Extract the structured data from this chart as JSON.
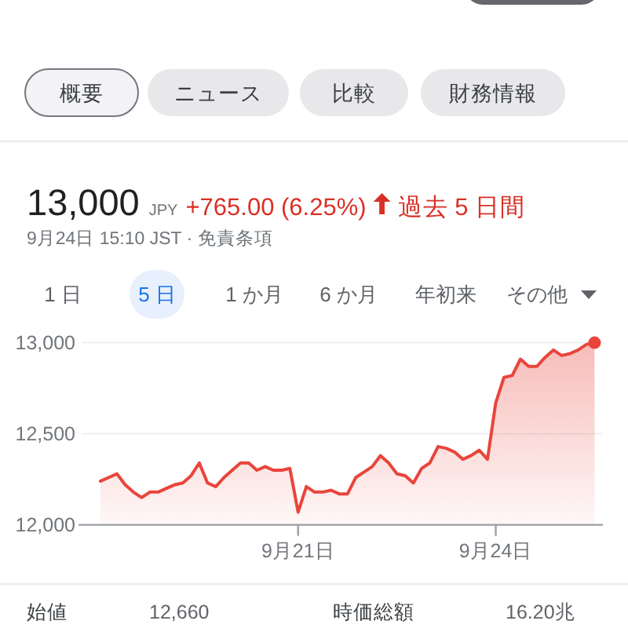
{
  "chart_data": {
    "type": "area",
    "title": "13,000",
    "subtitle": "9月24日 15:10 JST · 免責条項",
    "annotations": [
      "概要",
      "ニュース",
      "比較",
      "財務情報",
      "JPY",
      "+765.00 (6.25%)",
      "過去 5 日間",
      "1 日",
      "5 日",
      "1 か月",
      "6 か月",
      "年初来",
      "その他",
      "始値",
      "12,660",
      "時価総額",
      "16.20兆"
    ],
    "categories": [
      null,
      null,
      null,
      null,
      null,
      null,
      null,
      null,
      null,
      null,
      null,
      null,
      null,
      null,
      null,
      null,
      null,
      null,
      null,
      null,
      null,
      null,
      null,
      null,
      "9月21日",
      null,
      null,
      null,
      null,
      null,
      null,
      null,
      null,
      null,
      null,
      null,
      null,
      null,
      null,
      null,
      null,
      null,
      null,
      null,
      null,
      null,
      null,
      null,
      "9月24日",
      null,
      null,
      null,
      null,
      null,
      null,
      null,
      null,
      null,
      null,
      null,
      null
    ],
    "series": [
      {
        "color": "#e8453c",
        "values": [
          12240,
          12260,
          12280,
          12220,
          12180,
          12150,
          12180,
          12180,
          12200,
          12220,
          12230,
          12270,
          12340,
          12230,
          12210,
          12260,
          12300,
          12340,
          12340,
          12300,
          12320,
          12300,
          12300,
          12310,
          12070,
          12210,
          12180,
          12180,
          12190,
          12170,
          12170,
          12260,
          12290,
          12320,
          12380,
          12340,
          12280,
          12270,
          12230,
          12310,
          12340,
          12430,
          12420,
          12400,
          12360,
          12380,
          12410,
          12360,
          12670,
          12810,
          12820,
          12910,
          12870,
          12870,
          12920,
          12960,
          12930,
          12940,
          12960,
          12990,
          13000
        ]
      },
      {
        "type": "scatter",
        "marker": "circle",
        "color": "#e8453c",
        "values": [
          null,
          null,
          null,
          null,
          null,
          null,
          null,
          null,
          null,
          null,
          null,
          null,
          null,
          null,
          null,
          null,
          null,
          null,
          null,
          null,
          null,
          null,
          null,
          null,
          null,
          null,
          null,
          null,
          null,
          null,
          null,
          null,
          null,
          null,
          null,
          null,
          null,
          null,
          null,
          null,
          null,
          null,
          null,
          null,
          null,
          null,
          null,
          null,
          null,
          null,
          null,
          null,
          null,
          null,
          null,
          null,
          null,
          null,
          null,
          null,
          13000
        ]
      }
    ],
    "ylim": [
      12000,
      13000
    ],
    "yticks": [
      {
        "value": 12000,
        "label": "12,000"
      },
      {
        "value": 12500,
        "label": "12,500"
      },
      {
        "value": 13000,
        "label": "13,000"
      }
    ],
    "grid": "y"
  }
}
